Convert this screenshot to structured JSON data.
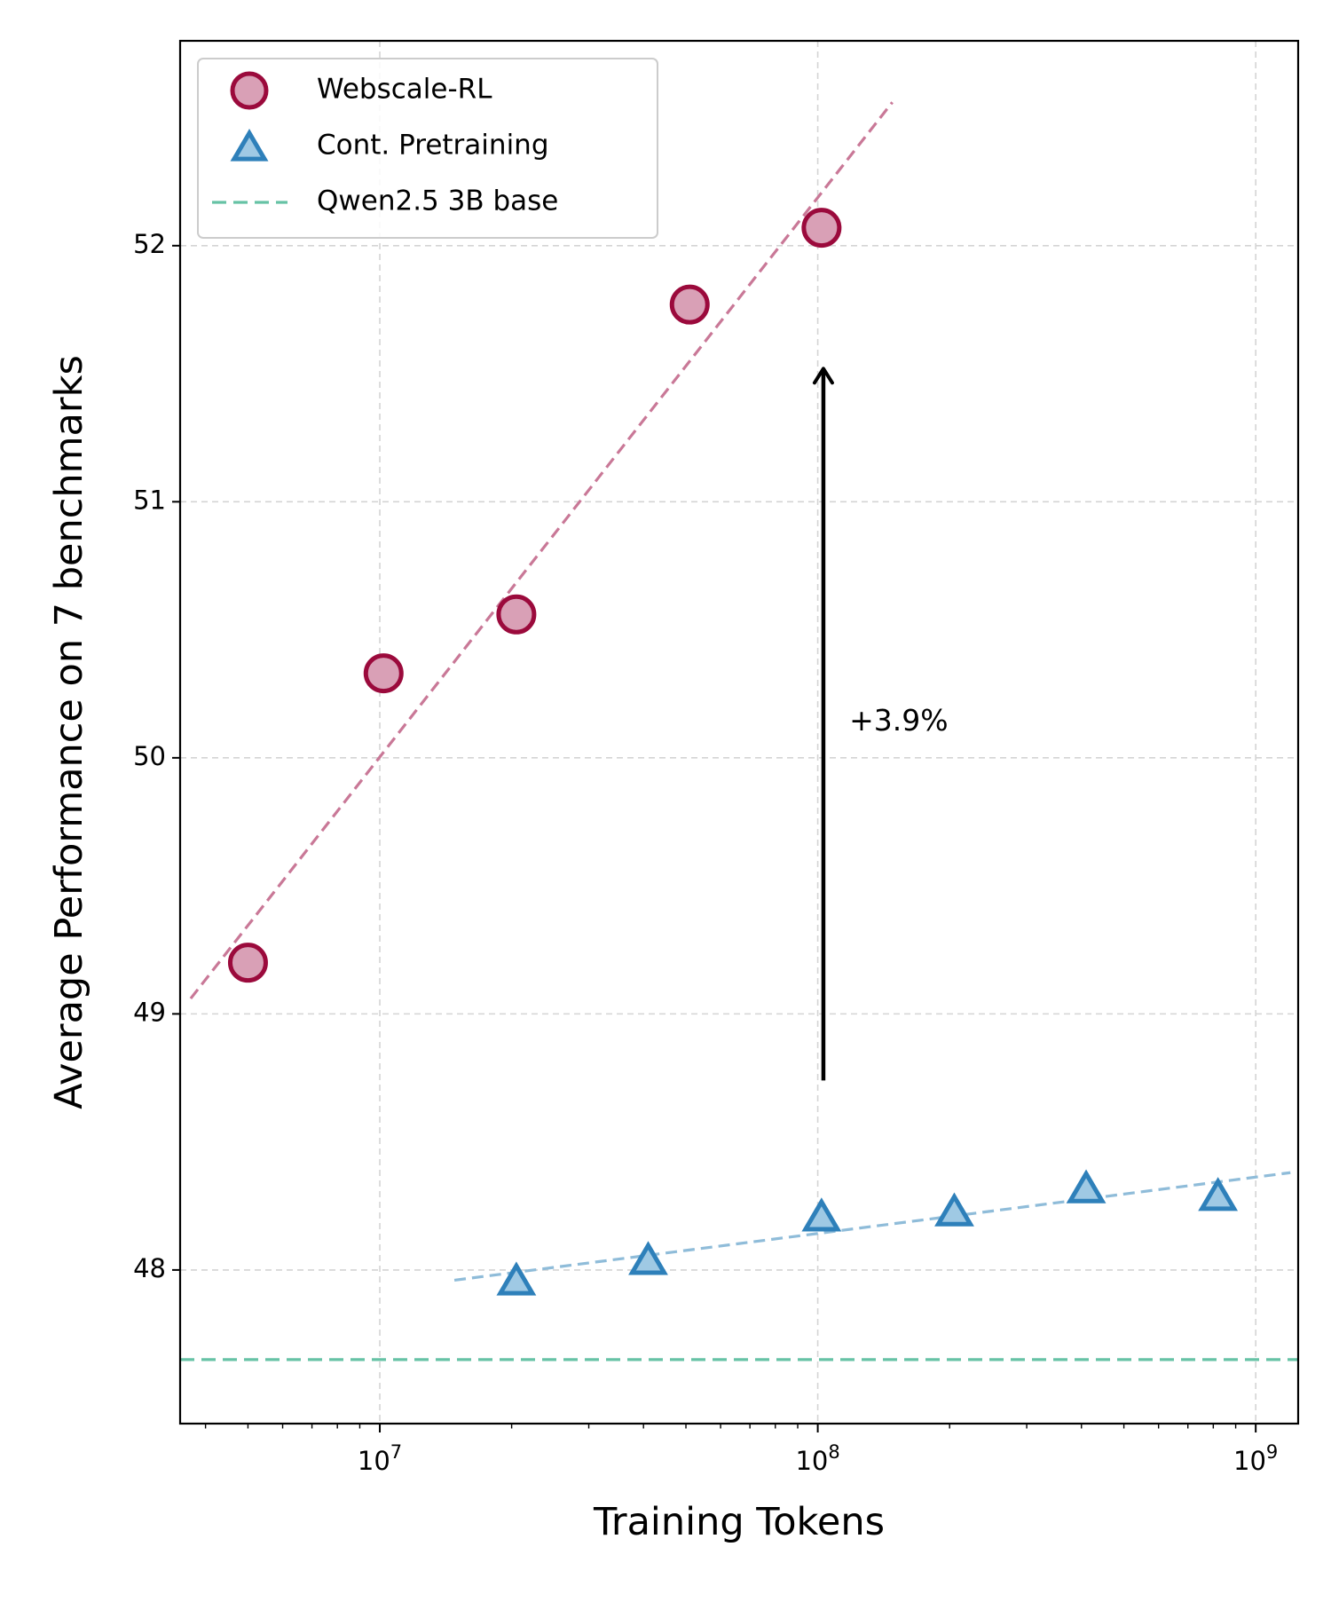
{
  "chart_data": {
    "type": "scatter",
    "xlabel": "Training Tokens",
    "ylabel": "Average Performance on 7 benchmarks",
    "xscale": "log",
    "xlim": [
      3500000,
      1250000000
    ],
    "ylim": [
      47.4,
      52.8
    ],
    "xticks": [
      {
        "value": 10000000,
        "base": "10",
        "exp": "7"
      },
      {
        "value": 100000000,
        "base": "10",
        "exp": "8"
      },
      {
        "value": 1000000000,
        "base": "10",
        "exp": "9"
      }
    ],
    "yticks": [
      {
        "value": 48,
        "label": "48"
      },
      {
        "value": 49,
        "label": "49"
      },
      {
        "value": 50,
        "label": "50"
      },
      {
        "value": 51,
        "label": "51"
      },
      {
        "value": 52,
        "label": "52"
      }
    ],
    "grid": true,
    "legend_position": "top-left",
    "series": [
      {
        "name": "Webscale-RL",
        "marker": "circle",
        "fill": "#d9a0b6",
        "edge": "#9b0a3c",
        "fit_color": "#c97897",
        "x": [
          5000000,
          10200000,
          20500000,
          51000000,
          102000000
        ],
        "y": [
          49.2,
          50.33,
          50.56,
          51.77,
          52.07
        ],
        "fit": {
          "x": [
            3700000,
            148000000
          ],
          "y": [
            49.06,
            52.56
          ]
        }
      },
      {
        "name": "Cont. Pretraining",
        "marker": "triangle",
        "fill": "#9fc9e4",
        "edge": "#2e80ba",
        "fit_color": "#8fbcd9",
        "x": [
          20500000,
          41000000,
          102000000,
          205000000,
          410000000,
          820000000
        ],
        "y": [
          47.95,
          48.03,
          48.2,
          48.22,
          48.31,
          48.28
        ],
        "fit": {
          "x": [
            14800000,
            1200000000
          ],
          "y": [
            47.96,
            48.38
          ]
        }
      },
      {
        "name": "Qwen2.5 3B base",
        "marker": "hline",
        "color": "#66c2a5",
        "y": 47.65
      }
    ],
    "annotations": [
      {
        "type": "arrow",
        "x": 103000000,
        "y_from": 48.74,
        "y_to": 51.52
      },
      {
        "type": "text",
        "text": "+3.9%",
        "x": 118000000,
        "y": 50.14
      }
    ]
  }
}
